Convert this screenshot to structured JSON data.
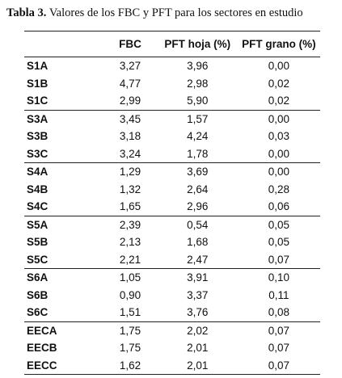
{
  "caption": {
    "label": "Tabla 3.",
    "text": "Valores de los FBC y PFT para los sectores en estudio"
  },
  "table": {
    "headers": [
      "",
      "FBC",
      "PFT hoja (%)",
      "PFT grano (%)"
    ],
    "groups": [
      {
        "rows": [
          [
            "S1A",
            "3,27",
            "3,96",
            "0,00"
          ],
          [
            "S1B",
            "4,77",
            "2,98",
            "0,02"
          ],
          [
            "S1C",
            "2,99",
            "5,90",
            "0,02"
          ]
        ]
      },
      {
        "rows": [
          [
            "S3A",
            "3,45",
            "1,57",
            "0,00"
          ],
          [
            "S3B",
            "3,18",
            "4,24",
            "0,03"
          ],
          [
            "S3C",
            "3,24",
            "1,78",
            "0,00"
          ]
        ]
      },
      {
        "rows": [
          [
            "S4A",
            "1,29",
            "3,69",
            "0,00"
          ],
          [
            "S4B",
            "1,32",
            "2,64",
            "0,28"
          ],
          [
            "S4C",
            "1,65",
            "2,96",
            "0,06"
          ]
        ]
      },
      {
        "rows": [
          [
            "S5A",
            "2,39",
            "0,54",
            "0,05"
          ],
          [
            "S5B",
            "2,13",
            "1,68",
            "0,05"
          ],
          [
            "S5C",
            "2,21",
            "2,47",
            "0,07"
          ]
        ]
      },
      {
        "rows": [
          [
            "S6A",
            "1,05",
            "3,91",
            "0,10"
          ],
          [
            "S6B",
            "0,90",
            "3,37",
            "0,11"
          ],
          [
            "S6C",
            "1,51",
            "3,76",
            "0,08"
          ]
        ]
      },
      {
        "rows": [
          [
            "EECA",
            "1,75",
            "2,02",
            "0,07"
          ],
          [
            "EECB",
            "1,75",
            "2,01",
            "0,07"
          ],
          [
            "EECC",
            "1,62",
            "2,01",
            "0,07"
          ]
        ]
      }
    ]
  }
}
